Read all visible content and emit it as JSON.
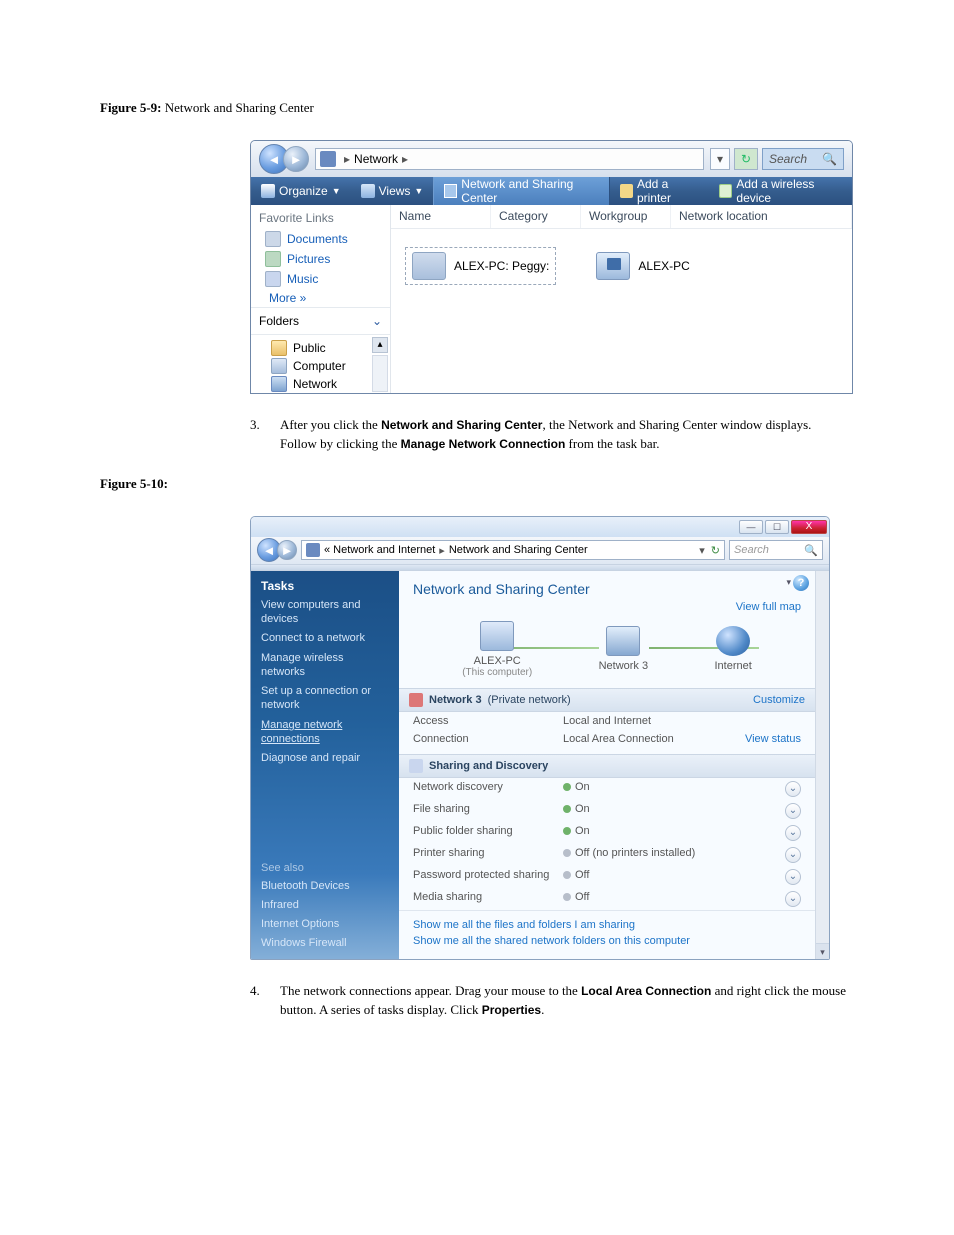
{
  "figure1": {
    "label_bold": "Figure 5-9:",
    "label_rest": " Network and Sharing Center"
  },
  "figure2": {
    "label_bold": "Figure 5-10:"
  },
  "win1": {
    "breadcrumb": {
      "root": "Network"
    },
    "search_placeholder": "Search",
    "toolbar": {
      "organize": "Organize",
      "views": "Views",
      "nsc": "Network and Sharing Center",
      "add_printer": "Add a printer",
      "add_wireless": "Add a wireless device"
    },
    "fav_header": "Favorite Links",
    "fav_items": [
      "Documents",
      "Pictures",
      "Music"
    ],
    "more": "More  »",
    "folders_header": "Folders",
    "folder_items": [
      "Public",
      "Computer",
      "Network"
    ],
    "columns": {
      "name": "Name",
      "category": "Category",
      "workgroup": "Workgroup",
      "netloc": "Network location"
    },
    "items": {
      "peggy": "ALEX-PC: Peggy:",
      "alexpc": "ALEX-PC"
    }
  },
  "step3": {
    "num": "3.",
    "t1": "After you click the ",
    "b1": "Network and Sharing Center",
    "t2": ", the Network and Sharing Center window displays. Follow by clicking the ",
    "b2": "Manage Network Connection",
    "t3": " from the task bar."
  },
  "win2": {
    "crumb_pre": "«  Network and Internet",
    "crumb_cur": "Network and Sharing Center",
    "search_placeholder": "Search",
    "tasks_header": "Tasks",
    "tasks": [
      "View computers and devices",
      "Connect to a network",
      "Manage wireless networks",
      "Set up a connection or network",
      "Manage network connections",
      "Diagnose and repair"
    ],
    "see_also_header": "See also",
    "see_also": [
      "Bluetooth Devices",
      "Infrared",
      "Internet Options",
      "Windows Firewall"
    ],
    "title": "Network and Sharing Center",
    "view_full_map": "View full map",
    "map": {
      "node1": "ALEX-PC",
      "node1sub": "(This computer)",
      "node2": "Network 3",
      "node3": "Internet"
    },
    "sec1": {
      "name": "Network 3",
      "type": "(Private network)",
      "customize": "Customize"
    },
    "rows1": {
      "access_k": "Access",
      "access_v": "Local and Internet",
      "conn_k": "Connection",
      "conn_v": "Local Area Connection",
      "view_status": "View status"
    },
    "sec2": {
      "title": "Sharing and Discovery"
    },
    "rows2": [
      {
        "k": "Network discovery",
        "v": "On",
        "on": true
      },
      {
        "k": "File sharing",
        "v": "On",
        "on": true
      },
      {
        "k": "Public folder sharing",
        "v": "On",
        "on": true
      },
      {
        "k": "Printer sharing",
        "v": "Off (no printers installed)",
        "on": false
      },
      {
        "k": "Password protected sharing",
        "v": "Off",
        "on": false
      },
      {
        "k": "Media sharing",
        "v": "Off",
        "on": false
      }
    ],
    "bottom1": "Show me all the files and folders I am sharing",
    "bottom2": "Show me all the shared network folders on this computer"
  },
  "step4": {
    "num": "4.",
    "t1": "The network connections appear. Drag your mouse to the ",
    "b1": "Local Area Connection",
    "t2": " and right click the mouse button. A series of tasks display. Click ",
    "b2": "Properties",
    "t3": "."
  }
}
